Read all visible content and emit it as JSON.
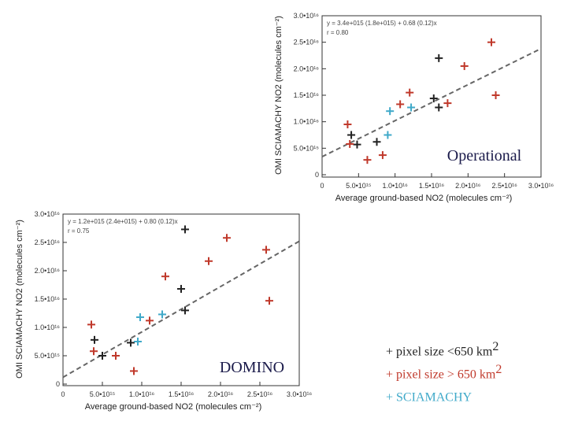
{
  "chart_data": [
    {
      "id": "operational",
      "type": "scatter",
      "panel_label": "Operational",
      "fit": {
        "equation": "y = 3.4e+015 (1.8e+015) + 0.68 (0.12)x",
        "r": "r = 0.80",
        "slope": 0.68,
        "intercept": 3400000000000000.0
      },
      "xlabel": "Average ground-based NO2 (molecules cm⁻²)",
      "ylabel": "OMI SCIAMACHY NO2 (molecules cm⁻²)",
      "xlim": [
        0,
        3e+16
      ],
      "ylim": [
        0,
        3e+16
      ],
      "xticks": [
        "0",
        "5.0•10¹⁵",
        "1.0•10¹⁶",
        "1.5•10¹⁶",
        "2.0•10¹⁶",
        "2.5•10¹⁶",
        "3.0•10¹⁶"
      ],
      "yticks": [
        "0",
        "5.0•10¹⁵",
        "1.0•10¹⁶",
        "1.5•10¹⁶",
        "2.0•10¹⁶",
        "2.5•10¹⁶",
        "3.0•10¹⁶"
      ],
      "series": [
        {
          "name": "pixel size <650 km2",
          "color": "#222222",
          "points": [
            [
              4000000000000000.0,
              7500000000000000.0
            ],
            [
              4800000000000000.0,
              5700000000000000.0
            ],
            [
              7500000000000000.0,
              6200000000000000.0
            ],
            [
              1.53e+16,
              1.44e+16
            ],
            [
              1.6e+16,
              1.27e+16
            ],
            [
              1.6e+16,
              2.2e+16
            ]
          ]
        },
        {
          "name": "pixel size > 650 km2",
          "color": "#c0392b",
          "points": [
            [
              3500000000000000.0,
              9500000000000000.0
            ],
            [
              3800000000000000.0,
              5800000000000000.0
            ],
            [
              6200000000000000.0,
              2800000000000000.0
            ],
            [
              8300000000000000.0,
              3700000000000000.0
            ],
            [
              1.07e+16,
              1.33e+16
            ],
            [
              1.2e+16,
              1.55e+16
            ],
            [
              1.72e+16,
              1.35e+16
            ],
            [
              1.95e+16,
              2.05e+16
            ],
            [
              2.32e+16,
              2.5e+16
            ],
            [
              2.38e+16,
              1.5e+16
            ]
          ]
        },
        {
          "name": "SCIAMACHY",
          "color": "#3fa9c9",
          "points": [
            [
              9000000000000000.0,
              7500000000000000.0
            ],
            [
              9300000000000000.0,
              1.2e+16
            ],
            [
              1.22e+16,
              1.27e+16
            ]
          ]
        }
      ]
    },
    {
      "id": "domino",
      "type": "scatter",
      "panel_label": "DOMINO",
      "fit": {
        "equation": "y = 1.2e+015 (2.4e+015) + 0.80 (0.12)x",
        "r": "r = 0.75",
        "slope": 0.8,
        "intercept": 1200000000000000.0
      },
      "xlabel": "Average ground-based NO2 (molecules cm⁻²)",
      "ylabel": "OMI SCIAMACHY NO2 (molecules cm⁻²)",
      "xlim": [
        0,
        3e+16
      ],
      "ylim": [
        0,
        3e+16
      ],
      "xticks": [
        "0",
        "5.0•10¹⁵",
        "1.0•10¹⁶",
        "1.5•10¹⁶",
        "2.0•10¹⁶",
        "2.5•10¹⁶",
        "3.0•10¹⁶"
      ],
      "yticks": [
        "0",
        "5.0•10¹⁵",
        "1.0•10¹⁶",
        "1.5•10¹⁶",
        "2.0•10¹⁶",
        "2.5•10¹⁶",
        "3.0•10¹⁶"
      ],
      "series": [
        {
          "name": "pixel size <650 km2",
          "color": "#222222",
          "points": [
            [
              4000000000000000.0,
              7800000000000000.0
            ],
            [
              5000000000000000.0,
              5000000000000000.0
            ],
            [
              8600000000000000.0,
              7300000000000000.0
            ],
            [
              1.5e+16,
              1.68e+16
            ],
            [
              1.55e+16,
              1.3e+16
            ],
            [
              1.55e+16,
              2.73e+16
            ]
          ]
        },
        {
          "name": "pixel size > 650 km2",
          "color": "#c0392b",
          "points": [
            [
              3600000000000000.0,
              1.05e+16
            ],
            [
              3900000000000000.0,
              5800000000000000.0
            ],
            [
              6700000000000000.0,
              5000000000000000.0
            ],
            [
              9000000000000000.0,
              2300000000000000.0
            ],
            [
              1.1e+16,
              1.12e+16
            ],
            [
              1.3e+16,
              1.9e+16
            ],
            [
              1.85e+16,
              2.17e+16
            ],
            [
              2.08e+16,
              2.58e+16
            ],
            [
              2.58e+16,
              2.37e+16
            ],
            [
              2.62e+16,
              1.47e+16
            ]
          ]
        },
        {
          "name": "SCIAMACHY",
          "color": "#3fa9c9",
          "points": [
            [
              9500000000000000.0,
              7500000000000000.0
            ],
            [
              9800000000000000.0,
              1.18e+16
            ],
            [
              1.26e+16,
              1.23e+16
            ]
          ]
        }
      ]
    }
  ],
  "legend": {
    "items": [
      {
        "marker": "+",
        "text": "pixel size <650 km",
        "sup": "2",
        "color": "#222222"
      },
      {
        "marker": "+",
        "text": "pixel size > 650 km",
        "sup": "2",
        "color": "#c0392b"
      },
      {
        "marker": "+",
        "text": "SCIAMACHY",
        "sup": "",
        "color": "#3fa9c9"
      }
    ]
  }
}
